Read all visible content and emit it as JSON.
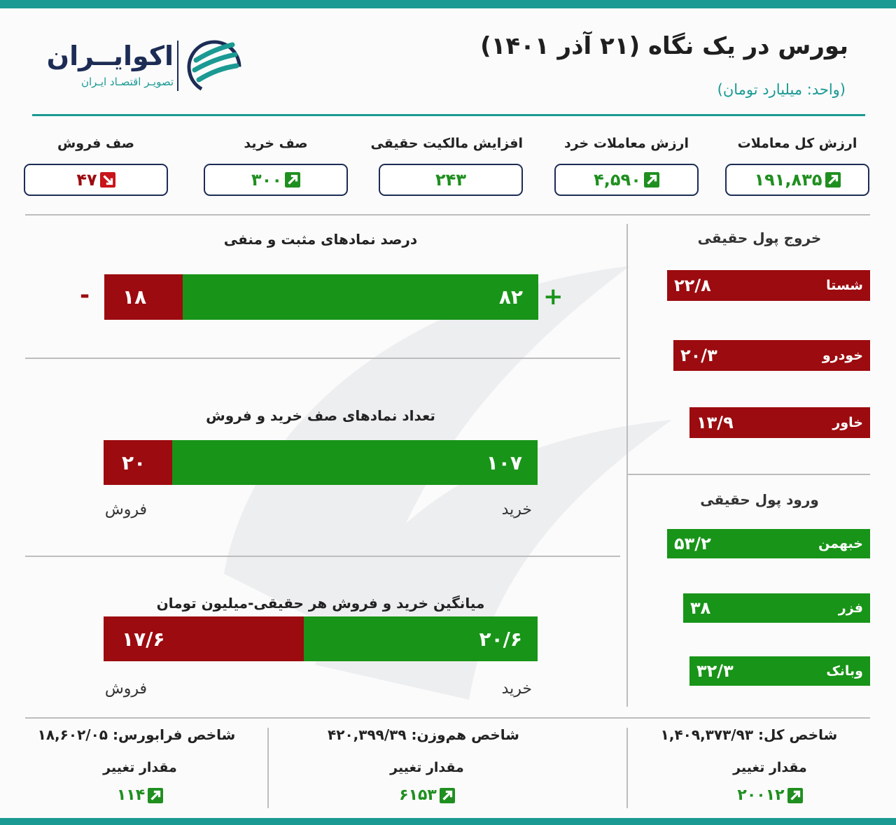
{
  "header": {
    "title": "بورس در یک نگاه (۲۱ آذر ۱۴۰۱)",
    "subtitle": "(واحد: میلیارد تومان)",
    "logo_text": "اکوایــران",
    "logo_subtext": "تصویـر اقتصـاد ایـران"
  },
  "colors": {
    "accent": "#1a9a93",
    "navy": "#1c2c55",
    "positive": "#189418",
    "negative": "#9b0b0f"
  },
  "stats": [
    {
      "label": "ارزش کل معاملات",
      "value": "۱۹۱,۸۳۵",
      "trend": "up"
    },
    {
      "label": "ارزش معاملات خرد",
      "value": "۴,۵۹۰",
      "trend": "up"
    },
    {
      "label": "افزایش مالکیت حقیقی",
      "value": "۲۴۳",
      "trend": "none"
    },
    {
      "label": "صف خرید",
      "value": "۳۰۰",
      "trend": "up"
    },
    {
      "label": "صف فروش",
      "value": "۴۷",
      "trend": "down"
    }
  ],
  "chart_data": [
    {
      "type": "bar",
      "title": "درصد نمادهای مثبت و منفی",
      "segments": [
        {
          "label": "+",
          "value": 82
        },
        {
          "label": "-",
          "value": 18
        }
      ],
      "value_labels": [
        "۸۲",
        "۱۸"
      ],
      "sign_pos": "+",
      "sign_neg": "-"
    },
    {
      "type": "bar",
      "title": "تعداد نمادهای صف خرید و فروش",
      "segments": [
        {
          "label": "خرید",
          "value": 107
        },
        {
          "label": "فروش",
          "value": 20
        }
      ],
      "value_labels": [
        "۱۰۷",
        "۲۰"
      ]
    },
    {
      "type": "bar",
      "title": "میانگین خرید و فروش هر حقیقی-میلیون تومان",
      "segments": [
        {
          "label": "خرید",
          "value": 20.6
        },
        {
          "label": "فروش",
          "value": 17.6
        }
      ],
      "value_labels": [
        "۲۰/۶",
        "۱۷/۶"
      ]
    },
    {
      "type": "bar",
      "title": "خروج پول حقیقی",
      "categories": [
        "شستا",
        "خودرو",
        "خاور"
      ],
      "values": [
        22.8,
        20.3,
        13.9
      ],
      "value_labels": [
        "۲۲/۸",
        "۲۰/۳",
        "۱۳/۹"
      ]
    },
    {
      "type": "bar",
      "title": "ورود پول حقیقی",
      "categories": [
        "خبهمن",
        "فزر",
        "وبانک"
      ],
      "values": [
        53.2,
        38,
        32.3
      ],
      "value_labels": [
        "۵۳/۲",
        "۳۸",
        "۳۲/۳"
      ]
    }
  ],
  "indices": [
    {
      "label": "شاخص کل: ۱,۴۰۹,۳۷۳/۹۳",
      "change_label": "مقدار تغییر",
      "change": "۲۰۰۱۲",
      "trend": "up"
    },
    {
      "label": "شاخص هم‌وزن: ۴۲۰,۳۹۹/۳۹",
      "change_label": "مقدار تغییر",
      "change": "۶۱۵۳",
      "trend": "up"
    },
    {
      "label": "شاخص فرابورس: ۱۸,۶۰۲/۰۵",
      "change_label": "مقدار تغییر",
      "change": "۱۱۴",
      "trend": "up"
    }
  ]
}
